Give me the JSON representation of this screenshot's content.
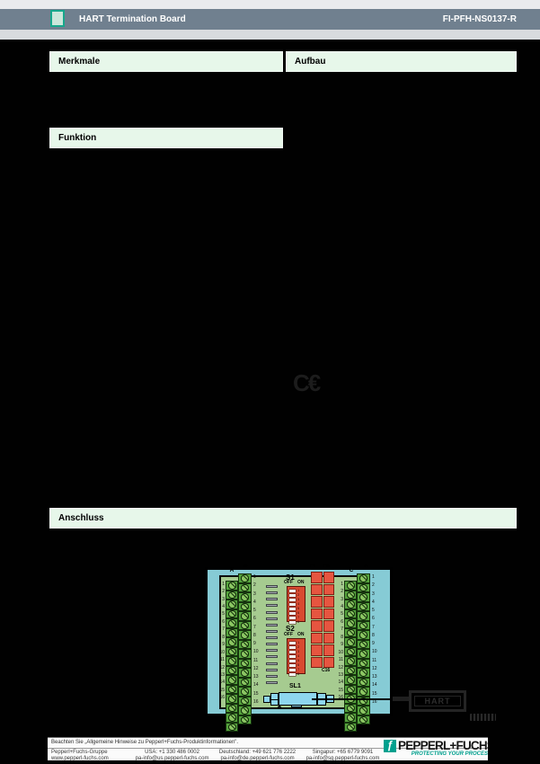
{
  "header": {
    "title": "HART Termination Board",
    "doc_number": "FI-PFH-NS0137-R"
  },
  "sections": {
    "merkmale": "Merkmale",
    "aufbau": "Aufbau",
    "funktion": "Funktion",
    "anschluss": "Anschluss"
  },
  "ce_mark": "C€",
  "diagram": {
    "terminal_labels": {
      "a": "A",
      "b": "B",
      "c": "C",
      "d": "D"
    },
    "terminal_numbers": [
      1,
      2,
      3,
      4,
      5,
      6,
      7,
      8,
      9,
      10,
      11,
      12,
      13,
      14,
      15,
      16
    ],
    "resistor_bar_count": 16,
    "switches": [
      {
        "label": "S1",
        "off_label": "OFF",
        "on_label": "ON",
        "positions": [
          1,
          2,
          3,
          4,
          5,
          6,
          7,
          8
        ]
      },
      {
        "label": "S2",
        "off_label": "OFF",
        "on_label": "ON",
        "positions": [
          1,
          2,
          3,
          4,
          5,
          6,
          7,
          8
        ]
      }
    ],
    "capacitors": {
      "first_label": "C1",
      "mid_label": "C9",
      "last_label": "C16",
      "count": 16
    },
    "connector_label": "SL1",
    "hart_box_label": "HART"
  },
  "footer": {
    "notice": "Beachten Sie „Allgemeine Hinweise zu Pepperl+Fuchs-Produktinformationen\".",
    "columns": [
      {
        "line1": "Pepperl+Fuchs-Gruppe",
        "line2": "www.pepperl-fuchs.com"
      },
      {
        "line1": "USA: +1 330 486 0002",
        "line2": "pa-info@us.pepperl-fuchs.com"
      },
      {
        "line1": "Deutschland: +49 621 776 2222",
        "line2": "pa-info@de.pepperl-fuchs.com"
      },
      {
        "line1": "Singapur: +65 6779 9091",
        "line2": "pa-info@sg.pepperl-fuchs.com"
      }
    ],
    "logo": {
      "wordmark": "PEPPERL+FUCHS",
      "tagline": "PROTECTING YOUR PROCESS",
      "icon_glyph": "ƒ"
    }
  },
  "colors": {
    "header_bar": "#70808F",
    "section_header_bg": "#E7F7EA",
    "accent_teal": "#00A08E",
    "board_frame_cyan": "#86CBD5",
    "pcb_green": "#A6CB90",
    "terminal_green": "#55A23D",
    "component_red": "#E65540",
    "connector_blue": "#8ED6EF"
  }
}
